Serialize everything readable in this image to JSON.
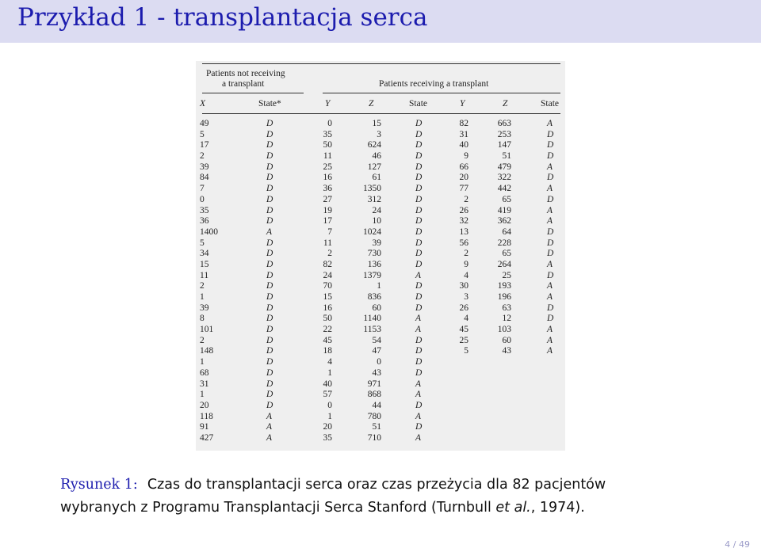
{
  "slide": {
    "title": "Przykład 1 - transplantacja serca",
    "page_number": "4 / 49"
  },
  "table": {
    "group_not_receiving_line1": "Patients not receiving",
    "group_not_receiving_line2": "a transplant",
    "group_receiving": "Patients receiving a transplant",
    "headers": [
      "X",
      "State*",
      "Y",
      "Z",
      "State",
      "Y",
      "Z",
      "State"
    ],
    "not_receiving_X": [
      "49",
      "5",
      "17",
      "2",
      "39",
      "84",
      "7",
      "0",
      "35",
      "36",
      "1400",
      "5",
      "34",
      "15",
      "11",
      "2",
      "1",
      "39",
      "8",
      "101",
      "2",
      "148",
      "1",
      "68",
      "31",
      "1",
      "20",
      "118",
      "91",
      "427"
    ],
    "not_receiving_state": [
      "D",
      "D",
      "D",
      "D",
      "D",
      "D",
      "D",
      "D",
      "D",
      "D",
      "A",
      "D",
      "D",
      "D",
      "D",
      "D",
      "D",
      "D",
      "D",
      "D",
      "D",
      "D",
      "D",
      "D",
      "D",
      "D",
      "D",
      "A",
      "A",
      "A"
    ],
    "receiving1_Y": [
      "0",
      "35",
      "50",
      "11",
      "25",
      "16",
      "36",
      "27",
      "19",
      "17",
      "7",
      "11",
      "2",
      "82",
      "24",
      "70",
      "15",
      "16",
      "50",
      "22",
      "45",
      "18",
      "4",
      "1",
      "40",
      "57",
      "0",
      "1",
      "20",
      "35"
    ],
    "receiving1_Z": [
      "15",
      "3",
      "624",
      "46",
      "127",
      "61",
      "1350",
      "312",
      "24",
      "10",
      "1024",
      "39",
      "730",
      "136",
      "1379",
      "1",
      "836",
      "60",
      "1140",
      "1153",
      "54",
      "47",
      "0",
      "43",
      "971",
      "868",
      "44",
      "780",
      "51",
      "710"
    ],
    "receiving1_state": [
      "D",
      "D",
      "D",
      "D",
      "D",
      "D",
      "D",
      "D",
      "D",
      "D",
      "D",
      "D",
      "D",
      "D",
      "A",
      "D",
      "D",
      "D",
      "A",
      "A",
      "D",
      "D",
      "D",
      "D",
      "A",
      "A",
      "D",
      "A",
      "D",
      "A"
    ],
    "receiving2_Y": [
      "82",
      "31",
      "40",
      "9",
      "66",
      "20",
      "77",
      "2",
      "26",
      "32",
      "13",
      "56",
      "2",
      "9",
      "4",
      "30",
      "3",
      "26",
      "4",
      "45",
      "25",
      "5"
    ],
    "receiving2_Z": [
      "663",
      "253",
      "147",
      "51",
      "479",
      "322",
      "442",
      "65",
      "419",
      "362",
      "64",
      "228",
      "65",
      "264",
      "25",
      "193",
      "196",
      "63",
      "12",
      "103",
      "60",
      "43"
    ],
    "receiving2_state": [
      "A",
      "D",
      "D",
      "D",
      "A",
      "D",
      "A",
      "D",
      "A",
      "A",
      "D",
      "D",
      "D",
      "A",
      "D",
      "A",
      "A",
      "D",
      "D",
      "A",
      "A",
      "A"
    ]
  },
  "caption": {
    "label": "Rysunek 1:",
    "line1": "Czas do transplantacji serca oraz czas przeżycia dla 82 pacjentów",
    "line2_prefix": "wybranych z Programu Transplantacji Serca Stanford (Turnbull ",
    "line2_etal": "et al.",
    "line2_suffix": ", 1974)."
  }
}
